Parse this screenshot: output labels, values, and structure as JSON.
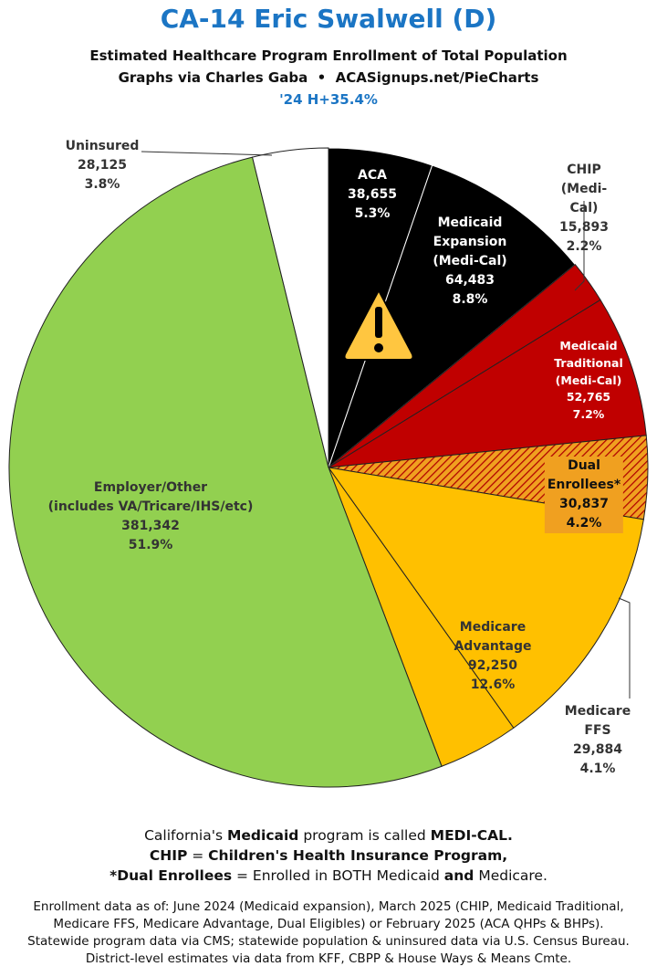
{
  "chart_data": {
    "type": "pie",
    "title": "CA-14 Eric Swalwell (D)",
    "subtitle": [
      "Estimated Healthcare Program Enrollment of Total Population",
      "Graphs via Charles Gaba  •  ACASignups.net/PieCharts"
    ],
    "annotation": "'24 H+35.4%",
    "categories": [
      "ACA",
      "Medicaid\nExpansion\n(Medi-Cal)",
      "CHIP (Medi-Cal)",
      "Medicaid\nTraditional\n(Medi-Cal)",
      "Dual Enrollees*",
      "Medicare\nAdvantage",
      "Medicare FFS",
      "Employer/Other\n(includes VA/Tricare/IHS/etc)",
      "Uninsured"
    ],
    "values": [
      38655,
      64483,
      15893,
      52765,
      30837,
      92250,
      29884,
      381342,
      28125
    ],
    "value_labels": [
      "38,655",
      "64,483",
      "15,893",
      "52,765",
      "30,837",
      "92,250",
      "29,884",
      "381,342",
      "28,125"
    ],
    "shares": [
      5.3,
      8.8,
      2.2,
      7.2,
      4.2,
      12.6,
      4.1,
      51.9,
      3.8
    ],
    "share_labels": [
      "5.3%",
      "8.8%",
      "2.2%",
      "7.2%",
      "4.2%",
      "12.6%",
      "4.1%",
      "51.9%",
      "3.8%"
    ],
    "colors": [
      "#000000",
      "#000000",
      "#c00000",
      "#c00000",
      "#f0a020",
      "#ffc000",
      "#ffc000",
      "#92d050",
      "#ffffff"
    ],
    "hatched": [
      false,
      false,
      false,
      false,
      true,
      false,
      false,
      false,
      false
    ],
    "hatch_color": "#b00000",
    "notes": [
      [
        {
          "t": "California's "
        },
        {
          "t": "Medicaid",
          "b": true
        },
        {
          "t": " program is called "
        },
        {
          "t": "MEDI-CAL.",
          "b": true
        }
      ],
      [
        {
          "t": "CHIP",
          "b": true
        },
        {
          "t": " = "
        },
        {
          "t": "Children's Health Insurance Program,",
          "b": true
        }
      ],
      [
        {
          "t": "*Dual Enrollees",
          "b": true
        },
        {
          "t": " = Enrolled in BOTH Medicaid "
        },
        {
          "t": "and",
          "b": true
        },
        {
          "t": " Medicare."
        }
      ]
    ],
    "fine_print": [
      "Enrollment data as of: June 2024 (Medicaid expansion), March 2025 (CHIP, Medicaid Traditional,",
      "Medicare FFS, Medicare Advantage, Dual Eligibles) or February 2025 (ACA QHPs & BHPs).",
      "Statewide program data via CMS; statewide population & uninsured data via U.S. Census Bureau.",
      "District-level estimates via data from KFF, CBPP & House Ways & Means Cmte."
    ]
  }
}
